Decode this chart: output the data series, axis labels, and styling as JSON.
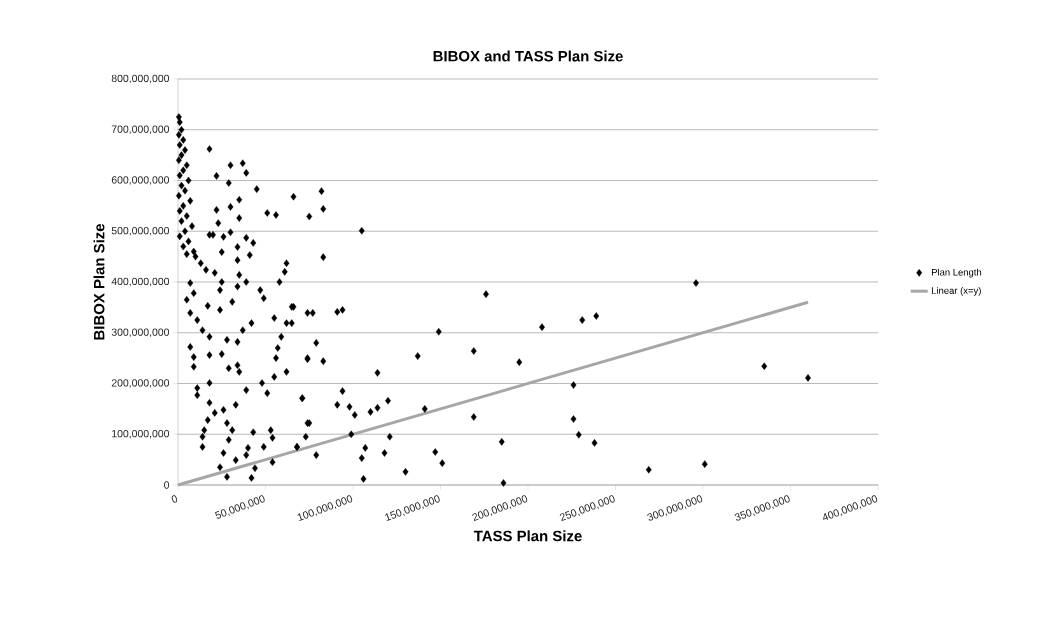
{
  "chart_data": {
    "type": "scatter",
    "title": "BIBOX and TASS Plan Size",
    "xlabel": "TASS Plan Size",
    "ylabel": "BIBOX Plan Size",
    "xlim": [
      0,
      400000000
    ],
    "ylim": [
      0,
      800000000
    ],
    "xticks": [
      {
        "value": 0,
        "label": "0"
      },
      {
        "value": 50000000,
        "label": "50,000,000"
      },
      {
        "value": 100000000,
        "label": "100,000,000"
      },
      {
        "value": 150000000,
        "label": "150,000,000"
      },
      {
        "value": 200000000,
        "label": "200,000,000"
      },
      {
        "value": 250000000,
        "label": "250,000,000"
      },
      {
        "value": 300000000,
        "label": "300,000,000"
      },
      {
        "value": 350000000,
        "label": "350,000,000"
      },
      {
        "value": 400000000,
        "label": "400,000,000"
      }
    ],
    "yticks": [
      {
        "value": 0,
        "label": "0"
      },
      {
        "value": 100000000,
        "label": "100,000,000"
      },
      {
        "value": 200000000,
        "label": "200,000,000"
      },
      {
        "value": 300000000,
        "label": "300,000,000"
      },
      {
        "value": 400000000,
        "label": "400,000,000"
      },
      {
        "value": 500000000,
        "label": "500,000,000"
      },
      {
        "value": 600000000,
        "label": "600,000,000"
      },
      {
        "value": 700000000,
        "label": "700,000,000"
      },
      {
        "value": 800000000,
        "label": "800,000,000"
      }
    ],
    "grid": "y",
    "legend": "right",
    "series": [
      {
        "name": "Plan Length",
        "color": "#000000",
        "marker": "diamond",
        "x": [
          500000,
          1000000,
          2000000,
          500000,
          3000000,
          1000000,
          4000000,
          2000000,
          500000,
          5000000,
          3000000,
          1000000,
          6000000,
          2000000,
          4000000,
          500000,
          7000000,
          3000000,
          1000000,
          5000000,
          2000000,
          8000000,
          4000000,
          1000000,
          6000000,
          3000000,
          9000000,
          5000000,
          10000000,
          18000000,
          30000000,
          37000000,
          39000000,
          22000000,
          29000000,
          45000000,
          35000000,
          30000000,
          51000000,
          56000000,
          35000000,
          22000000,
          23000000,
          20000000,
          26000000,
          30000000,
          39000000,
          43000000,
          34000000,
          41000000,
          25000000,
          18000000,
          13000000,
          16000000,
          21000000,
          34000000,
          35000000,
          62000000,
          61000000,
          58000000,
          47000000,
          49000000,
          34000000,
          39000000,
          25000000,
          7000000,
          9000000,
          5000000,
          24000000,
          31000000,
          17000000,
          24000000,
          65000000,
          74000000,
          55000000,
          62000000,
          42000000,
          37000000,
          7000000,
          11000000,
          14000000,
          18000000,
          28000000,
          34000000,
          59000000,
          57000000,
          7000000,
          9000000,
          18000000,
          25000000,
          56000000,
          74000000,
          9000000,
          29000000,
          34000000,
          35000000,
          62000000,
          55000000,
          18000000,
          48000000,
          11000000,
          39000000,
          51000000,
          11000000,
          71000000,
          18000000,
          33000000,
          26000000,
          21000000,
          17000000,
          28000000,
          74000000,
          15000000,
          31000000,
          43000000,
          53000000,
          14000000,
          54000000,
          29000000,
          14000000,
          40000000,
          49000000,
          68000000,
          26000000,
          39000000,
          54000000,
          33000000,
          24000000,
          44000000,
          28000000,
          42000000,
          66000000,
          82000000,
          83000000,
          75000000,
          105000000,
          83000000,
          176000000,
          66000000,
          77000000,
          91000000,
          94000000,
          65000000,
          149000000,
          79000000,
          74000000,
          83000000,
          137000000,
          169000000,
          195000000,
          114000000,
          94000000,
          71000000,
          91000000,
          98000000,
          101000000,
          110000000,
          114000000,
          120000000,
          141000000,
          169000000,
          75000000,
          73000000,
          99000000,
          121000000,
          185000000,
          68000000,
          79000000,
          107000000,
          105000000,
          118000000,
          147000000,
          151000000,
          130000000,
          106000000,
          186000000,
          296000000,
          208000000,
          231000000,
          239000000,
          335000000,
          360000000,
          226000000,
          226000000,
          229000000,
          238000000,
          269000000,
          301000000
        ],
        "values": [
          725000000,
          715000000,
          700000000,
          690000000,
          680000000,
          670000000,
          660000000,
          650000000,
          640000000,
          630000000,
          620000000,
          610000000,
          600000000,
          590000000,
          580000000,
          570000000,
          560000000,
          550000000,
          540000000,
          530000000,
          520000000,
          510000000,
          500000000,
          490000000,
          480000000,
          470000000,
          460000000,
          455000000,
          450000000,
          662000000,
          630000000,
          634000000,
          615000000,
          609000000,
          595000000,
          583000000,
          562000000,
          548000000,
          536000000,
          532000000,
          526000000,
          542000000,
          516000000,
          493000000,
          489000000,
          498000000,
          487000000,
          477000000,
          469000000,
          453000000,
          459000000,
          493000000,
          437000000,
          424000000,
          418000000,
          443000000,
          414000000,
          437000000,
          420000000,
          400000000,
          384000000,
          368000000,
          391000000,
          400000000,
          400000000,
          398000000,
          378000000,
          365000000,
          384000000,
          361000000,
          353000000,
          345000000,
          351000000,
          339000000,
          329000000,
          319000000,
          319000000,
          305000000,
          339000000,
          325000000,
          305000000,
          292000000,
          286000000,
          282000000,
          292000000,
          270000000,
          272000000,
          252000000,
          256000000,
          258000000,
          250000000,
          250000000,
          233000000,
          230000000,
          236000000,
          223000000,
          223000000,
          213000000,
          201000000,
          201000000,
          191000000,
          187000000,
          181000000,
          177000000,
          171000000,
          162000000,
          158000000,
          148000000,
          142000000,
          128000000,
          122000000,
          122000000,
          108000000,
          108000000,
          104000000,
          108000000,
          95000000,
          93000000,
          89000000,
          75000000,
          73000000,
          75000000,
          75000000,
          63000000,
          59000000,
          45000000,
          49000000,
          35000000,
          33000000,
          16000000,
          14000000,
          568000000,
          579000000,
          544000000,
          529000000,
          501000000,
          449000000,
          376000000,
          351000000,
          339000000,
          341000000,
          345000000,
          319000000,
          302000000,
          280000000,
          248000000,
          244000000,
          254000000,
          264000000,
          242000000,
          221000000,
          185000000,
          171000000,
          158000000,
          154000000,
          138000000,
          144000000,
          152000000,
          166000000,
          150000000,
          134000000,
          122000000,
          95000000,
          100000000,
          95000000,
          85000000,
          75000000,
          59000000,
          73000000,
          53000000,
          63000000,
          65000000,
          43000000,
          26000000,
          12000000,
          4000000,
          398000000,
          311000000,
          325000000,
          333000000,
          234000000,
          211000000,
          197000000,
          130000000,
          99000000,
          83000000,
          30000000,
          41000000
        ]
      },
      {
        "name": "Linear (x=y)",
        "type": "line",
        "color": "#a6a6a6",
        "marker": "none",
        "x": [
          0,
          360000000
        ],
        "values": [
          0,
          360000000
        ]
      }
    ]
  }
}
